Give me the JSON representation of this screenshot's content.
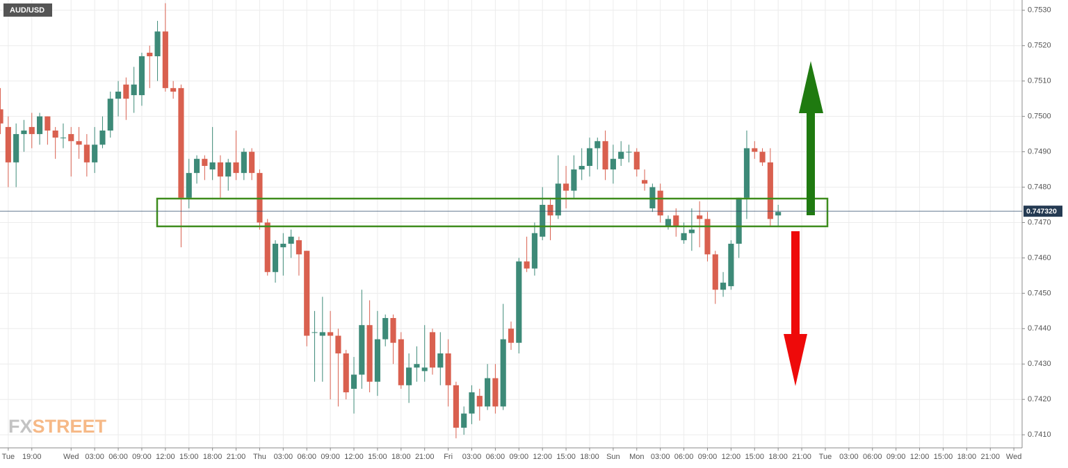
{
  "chart_data": {
    "type": "candlestick",
    "title": "AUD/USD",
    "logo": [
      "FX",
      "STREET"
    ],
    "up_color": "#3d8a78",
    "down_color": "#d9604f",
    "grid": true,
    "categories": [
      null,
      null,
      null,
      null,
      null,
      null,
      null,
      null,
      null,
      null,
      null,
      null,
      null,
      null,
      null,
      null,
      null,
      null,
      null,
      null,
      null,
      null,
      null,
      null,
      null,
      null,
      null,
      null,
      null,
      null,
      null,
      null,
      null,
      null,
      null,
      null,
      null,
      null,
      null,
      null,
      null,
      null,
      null,
      null,
      null,
      null,
      null,
      null,
      null,
      null,
      null,
      null,
      null,
      null,
      null,
      null,
      null,
      null,
      null,
      null,
      null,
      null,
      null,
      null,
      null,
      null,
      null,
      null,
      null,
      null,
      null,
      null,
      null,
      null,
      null,
      null,
      null,
      null,
      null,
      null,
      null,
      null,
      null,
      null,
      null,
      null,
      null,
      null,
      null,
      null,
      null,
      null,
      null,
      null,
      null,
      null,
      null,
      null,
      null,
      null
    ],
    "open": [
      0.7502,
      0.7497,
      0.7487,
      0.7495,
      0.7497,
      0.7495,
      0.75,
      0.7496,
      0.7494,
      0.7495,
      0.7493,
      0.7492,
      0.7487,
      0.7492,
      0.7496,
      0.7505,
      0.7509,
      0.7506,
      0.7506,
      0.7518,
      0.7517,
      0.7524,
      0.7508,
      0.7508,
      0.7477,
      0.7484,
      0.7488,
      0.7485,
      0.7487,
      0.7483,
      0.7487,
      0.7484,
      0.749,
      0.7484,
      0.747,
      0.7456,
      0.7463,
      0.7464,
      0.7465,
      0.7462,
      0.7439,
      0.7438,
      0.7439,
      0.7438,
      0.7433,
      0.7423,
      0.7427,
      0.7441,
      0.7425,
      0.7437,
      0.7443,
      0.7437,
      0.7424,
      0.7429,
      0.7428,
      0.7439,
      0.7429,
      0.7433,
      0.7424,
      0.7412,
      0.7416,
      0.7421,
      0.7418,
      0.7426,
      0.7418,
      0.744,
      0.7436,
      0.7459,
      0.7457,
      0.7466,
      0.7475,
      0.7472,
      0.7481,
      0.7479,
      0.7485,
      0.7486,
      0.7491,
      0.7493,
      0.7485,
      0.7488,
      0.749,
      0.749,
      0.7482,
      0.7474,
      0.7479,
      0.7469,
      0.7472,
      0.7465,
      0.7467,
      0.7472,
      0.7471,
      0.7461,
      0.7451,
      0.7452,
      0.7464,
      0.7477,
      0.7491,
      0.749,
      0.7487,
      0.7472
    ],
    "high": [
      0.7508,
      0.75,
      0.7498,
      0.7499,
      0.7501,
      0.7501,
      0.75,
      0.7497,
      0.7498,
      0.7497,
      0.7497,
      0.7495,
      0.7497,
      0.75,
      0.7507,
      0.751,
      0.7511,
      0.7514,
      0.7518,
      0.752,
      0.7527,
      0.7532,
      0.751,
      0.7509,
      0.7488,
      0.7489,
      0.7489,
      0.7497,
      0.7489,
      0.7488,
      0.7496,
      0.7491,
      0.7491,
      0.7485,
      0.7471,
      0.7465,
      0.7467,
      0.7468,
      0.7466,
      0.7462,
      0.7445,
      0.7449,
      0.7445,
      0.744,
      0.7434,
      0.7432,
      0.7451,
      0.7448,
      0.7445,
      0.7444,
      0.7444,
      0.7439,
      0.7433,
      0.7435,
      0.7441,
      0.744,
      0.7439,
      0.7437,
      0.7425,
      0.7418,
      0.7424,
      0.7423,
      0.743,
      0.743,
      0.7447,
      0.7442,
      0.746,
      0.7466,
      0.747,
      0.748,
      0.7477,
      0.7489,
      0.7486,
      0.7489,
      0.7491,
      0.7494,
      0.7494,
      0.7496,
      0.7492,
      0.7493,
      0.7492,
      0.7491,
      0.7485,
      0.7481,
      0.7481,
      0.7472,
      0.7474,
      0.747,
      0.7474,
      0.7476,
      0.7473,
      0.7462,
      0.7456,
      0.7465,
      0.7477,
      0.7496,
      0.7493,
      0.7491,
      0.7491,
      0.7475
    ],
    "low": [
      0.7495,
      0.748,
      0.748,
      0.749,
      0.7491,
      0.7492,
      0.7492,
      0.7488,
      0.7491,
      0.7483,
      0.7488,
      0.7483,
      0.7484,
      0.7491,
      0.7494,
      0.75,
      0.7499,
      0.7501,
      0.7503,
      0.7508,
      0.751,
      0.7507,
      0.7505,
      0.7463,
      0.7474,
      0.7481,
      0.7482,
      0.7482,
      0.7477,
      0.7479,
      0.7482,
      0.7482,
      0.7482,
      0.7468,
      0.7455,
      0.7453,
      0.7455,
      0.746,
      0.7455,
      0.7435,
      0.7425,
      0.7425,
      0.742,
      0.7418,
      0.742,
      0.7416,
      0.7423,
      0.7422,
      0.7421,
      0.7435,
      0.743,
      0.7423,
      0.7419,
      0.7425,
      0.7425,
      0.7427,
      0.7424,
      0.7418,
      0.7409,
      0.741,
      0.7413,
      0.7414,
      0.7417,
      0.7416,
      0.7417,
      0.7434,
      0.7433,
      0.7456,
      0.7455,
      0.7465,
      0.7465,
      0.7471,
      0.7474,
      0.7477,
      0.7482,
      0.7483,
      0.7485,
      0.7482,
      0.7481,
      0.7486,
      0.7487,
      0.7483,
      0.7479,
      0.7473,
      0.747,
      0.7468,
      0.7466,
      0.7464,
      0.7462,
      0.7463,
      0.7459,
      0.7447,
      0.7449,
      0.7451,
      0.746,
      0.7471,
      0.7488,
      0.7486,
      0.7469,
      0.7469
    ],
    "close": [
      0.7498,
      0.7487,
      0.7495,
      0.7496,
      0.7495,
      0.75,
      0.7496,
      0.7494,
      0.7494,
      0.7493,
      0.7492,
      0.7487,
      0.7492,
      0.7496,
      0.7505,
      0.7507,
      0.7505,
      0.7509,
      0.7517,
      0.7517,
      0.7524,
      0.7508,
      0.7507,
      0.7477,
      0.7484,
      0.7488,
      0.7486,
      0.7487,
      0.7483,
      0.7487,
      0.7484,
      0.749,
      0.7484,
      0.747,
      0.7456,
      0.7464,
      0.7464,
      0.7466,
      0.7461,
      0.7438,
      0.7439,
      0.7439,
      0.7438,
      0.7433,
      0.7422,
      0.7427,
      0.7441,
      0.7425,
      0.7437,
      0.7443,
      0.7436,
      0.7424,
      0.7429,
      0.743,
      0.7429,
      0.7429,
      0.7433,
      0.7424,
      0.7412,
      0.7416,
      0.7422,
      0.7418,
      0.7426,
      0.7418,
      0.7437,
      0.7436,
      0.7459,
      0.7457,
      0.7467,
      0.7475,
      0.7472,
      0.7481,
      0.7479,
      0.7485,
      0.7486,
      0.7491,
      0.7493,
      0.7485,
      0.7488,
      0.749,
      0.749,
      0.7485,
      0.7481,
      0.748,
      0.7472,
      0.7471,
      0.7469,
      0.7467,
      0.7468,
      0.7471,
      0.7461,
      0.7451,
      0.7453,
      0.7464,
      0.7477,
      0.7491,
      0.749,
      0.7487,
      0.7471,
      0.7473
    ],
    "xlim": [
      -0.05,
      130.05
    ],
    "xticks": [
      {
        "value": 1,
        "label": "Tue"
      },
      {
        "value": 4,
        "label": "19:00"
      },
      {
        "value": 9,
        "label": "Wed"
      },
      {
        "value": 12,
        "label": "03:00"
      },
      {
        "value": 15,
        "label": "06:00"
      },
      {
        "value": 18,
        "label": "09:00"
      },
      {
        "value": 21,
        "label": "12:00"
      },
      {
        "value": 24,
        "label": "15:00"
      },
      {
        "value": 27,
        "label": "18:00"
      },
      {
        "value": 30,
        "label": "21:00"
      },
      {
        "value": 33,
        "label": "Thu"
      },
      {
        "value": 36,
        "label": "03:00"
      },
      {
        "value": 39,
        "label": "06:00"
      },
      {
        "value": 42,
        "label": "09:00"
      },
      {
        "value": 45,
        "label": "12:00"
      },
      {
        "value": 48,
        "label": "15:00"
      },
      {
        "value": 51,
        "label": "18:00"
      },
      {
        "value": 54,
        "label": "21:00"
      },
      {
        "value": 57,
        "label": "Fri"
      },
      {
        "value": 60,
        "label": "03:00"
      },
      {
        "value": 63,
        "label": "06:00"
      },
      {
        "value": 66,
        "label": "09:00"
      },
      {
        "value": 69,
        "label": "12:00"
      },
      {
        "value": 72,
        "label": "15:00"
      },
      {
        "value": 75,
        "label": "18:00"
      },
      {
        "value": 78,
        "label": "Sun"
      },
      {
        "value": 81,
        "label": "Mon"
      },
      {
        "value": 84,
        "label": "03:00"
      },
      {
        "value": 87,
        "label": "06:00"
      },
      {
        "value": 90,
        "label": "09:00"
      },
      {
        "value": 93,
        "label": "12:00"
      },
      {
        "value": 96,
        "label": "15:00"
      },
      {
        "value": 99,
        "label": "18:00"
      },
      {
        "value": 102,
        "label": "21:00"
      },
      {
        "value": 105,
        "label": "Tue"
      },
      {
        "value": 108,
        "label": "03:00"
      },
      {
        "value": 111,
        "label": "06:00"
      },
      {
        "value": 114,
        "label": "09:00"
      },
      {
        "value": 117,
        "label": "12:00"
      },
      {
        "value": 120,
        "label": "15:00"
      },
      {
        "value": 123,
        "label": "18:00"
      },
      {
        "value": 126,
        "label": "21:00"
      },
      {
        "value": 129,
        "label": "Wed"
      }
    ],
    "ylim": [
      0.74063,
      0.75329
    ],
    "yticks": [
      {
        "value": 0.741,
        "label": "0.7410"
      },
      {
        "value": 0.742,
        "label": "0.7420"
      },
      {
        "value": 0.743,
        "label": "0.7430"
      },
      {
        "value": 0.744,
        "label": "0.7440"
      },
      {
        "value": 0.745,
        "label": "0.7450"
      },
      {
        "value": 0.746,
        "label": "0.7460"
      },
      {
        "value": 0.747,
        "label": "0.7470"
      },
      {
        "value": 0.748,
        "label": "0.7480"
      },
      {
        "value": 0.749,
        "label": "0.7490"
      },
      {
        "value": 0.75,
        "label": "0.7500"
      },
      {
        "value": 0.751,
        "label": "0.7510"
      },
      {
        "value": 0.752,
        "label": "0.7520"
      },
      {
        "value": 0.753,
        "label": "0.7530"
      }
    ],
    "current_price": {
      "value": 0.74732,
      "label": "0.747320"
    }
  }
}
